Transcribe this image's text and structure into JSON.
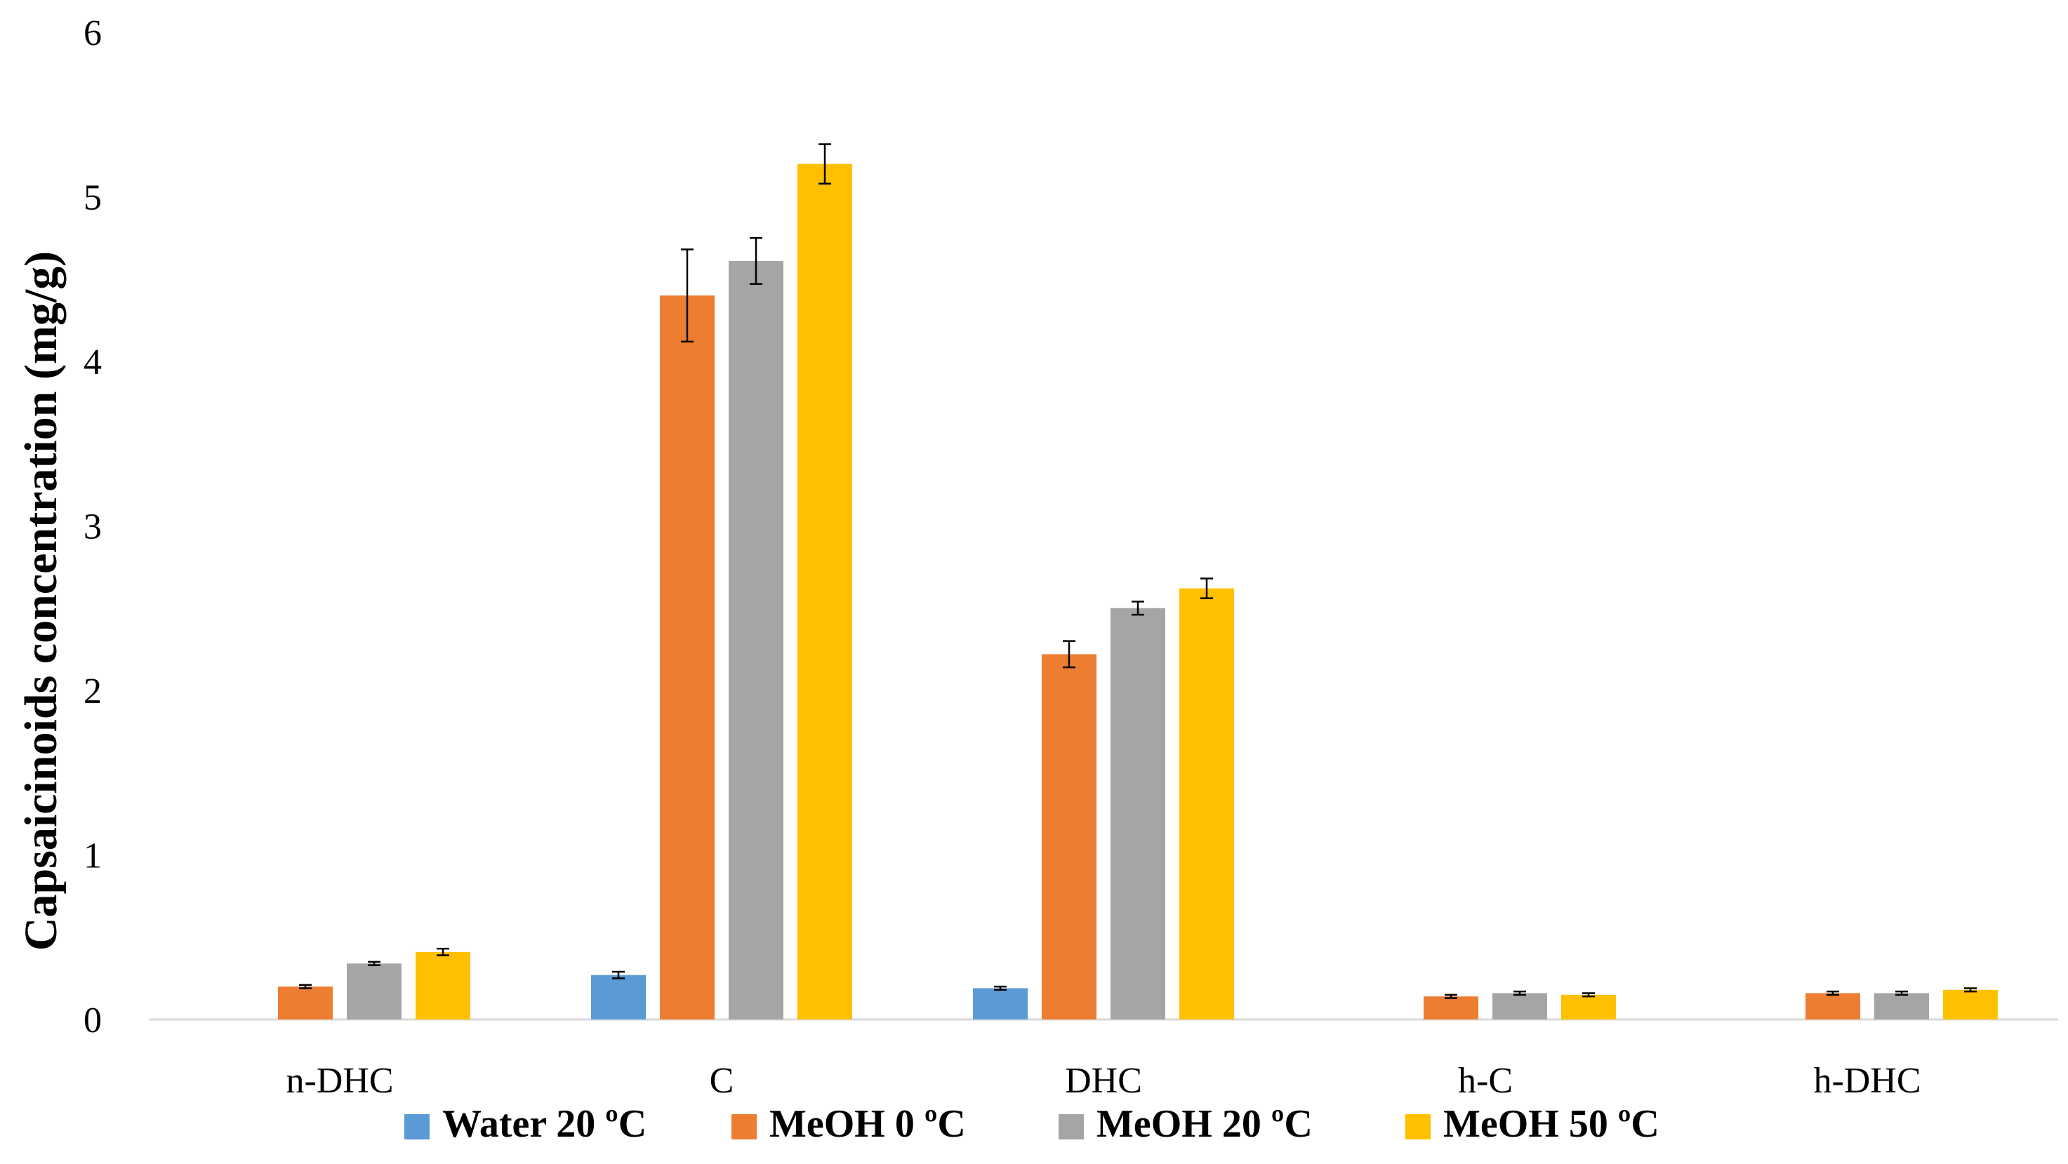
{
  "chart_data": {
    "type": "bar",
    "title": "",
    "xlabel": "",
    "ylabel": "Capsaicinoids concentration (mg/g)",
    "ylim": [
      0,
      6
    ],
    "yticks": [
      "0",
      "1",
      "2",
      "3",
      "4",
      "5",
      "6"
    ],
    "categories": [
      "n-DHC",
      "C",
      "DHC",
      "h-C",
      "h-DHC"
    ],
    "legend_position": "bottom",
    "grid": false,
    "series": [
      {
        "name": "Water 20 ºC",
        "color": "#5B9BD5",
        "values": [
          null,
          0.27,
          0.19,
          null,
          null
        ],
        "errors": [
          null,
          0.02,
          0.01,
          null,
          null
        ]
      },
      {
        "name": "MeOH 0 ºC",
        "color": "#ED7D31",
        "values": [
          0.2,
          4.4,
          2.22,
          0.14,
          0.16
        ],
        "errors": [
          0.01,
          0.28,
          0.08,
          0.01,
          0.01
        ]
      },
      {
        "name": "MeOH 20 ºC",
        "color": "#A5A5A5",
        "values": [
          0.34,
          4.61,
          2.5,
          0.16,
          0.16
        ],
        "errors": [
          0.01,
          0.14,
          0.04,
          0.01,
          0.01
        ]
      },
      {
        "name": "MeOH 50 ºC",
        "color": "#FFC000",
        "values": [
          0.41,
          5.2,
          2.62,
          0.15,
          0.18
        ],
        "errors": [
          0.02,
          0.12,
          0.06,
          0.01,
          0.01
        ]
      }
    ]
  }
}
